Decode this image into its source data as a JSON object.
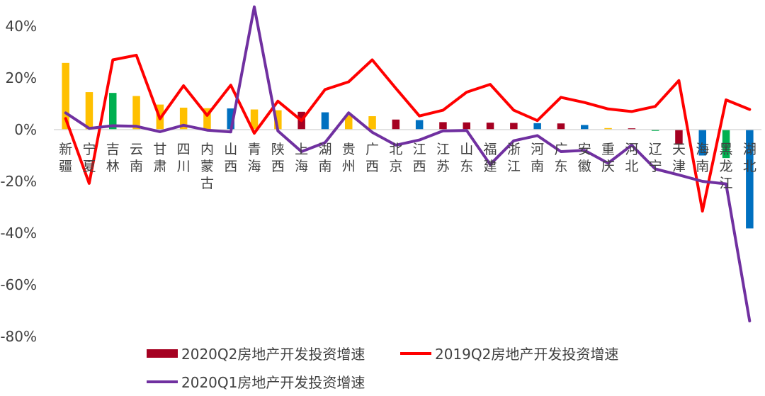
{
  "chart_data": {
    "type": "bar",
    "categories": [
      "新疆",
      "宁夏",
      "吉林",
      "云南",
      "甘肃",
      "四川",
      "内蒙古",
      "山西",
      "青海",
      "陕西",
      "上海",
      "湖南",
      "贵州",
      "广西",
      "北京",
      "江西",
      "江苏",
      "山东",
      "福建",
      "浙江",
      "河南",
      "广东",
      "安徽",
      "重庆",
      "河北",
      "辽宁",
      "天津",
      "海南",
      "黑龙江",
      "湖北"
    ],
    "ylim": [
      -80,
      45
    ],
    "yticks": [
      40,
      20,
      0,
      -20,
      -40,
      -60,
      -80
    ],
    "ytick_labels": [
      "40%",
      "20%",
      "0%",
      "-20%",
      "-40%",
      "-60%",
      "-80%"
    ],
    "grid": false,
    "legend_position": "bottom",
    "series": [
      {
        "name": "2020Q2房地产开发投资增速",
        "type": "bar",
        "color": "#A50021",
        "values": [
          25.8,
          14.5,
          14.2,
          13.0,
          9.7,
          8.5,
          8.3,
          8.2,
          7.8,
          7.5,
          6.9,
          6.7,
          5.5,
          5.2,
          3.9,
          3.7,
          2.9,
          2.8,
          2.7,
          2.6,
          2.5,
          2.4,
          1.8,
          0.6,
          0.5,
          -0.5,
          -5.8,
          -10.0,
          -11.0,
          -38.2
        ],
        "bar_colors": [
          "#FFC000",
          "#FFC000",
          "#00B050",
          "#FFC000",
          "#FFC000",
          "#FFC000",
          "#FFC000",
          "#0070C0",
          "#FFC000",
          "#FFC000",
          "#A50021",
          "#0070C0",
          "#FFC000",
          "#FFC000",
          "#A50021",
          "#0070C0",
          "#A50021",
          "#A50021",
          "#A50021",
          "#A50021",
          "#0070C0",
          "#A50021",
          "#0070C0",
          "#FFC000",
          "#A50021",
          "#00B050",
          "#A50021",
          "#0070C0",
          "#00B050",
          "#0070C0"
        ]
      },
      {
        "name": "2019Q2房地产开发投资增速",
        "type": "line",
        "color": "#FF0000",
        "values": [
          4.3,
          -20.8,
          27.0,
          28.8,
          4.2,
          17.0,
          5.5,
          17.2,
          -1.4,
          11.0,
          3.5,
          15.5,
          18.5,
          27.0,
          16.0,
          5.3,
          7.5,
          14.5,
          17.5,
          7.5,
          3.5,
          12.5,
          10.5,
          8.0,
          7.0,
          9.0,
          19.0,
          -31.5,
          11.5,
          7.8
        ]
      },
      {
        "name": "2020Q1房地产开发投资增速",
        "type": "line",
        "color": "#7030A0",
        "values": [
          6.5,
          0.5,
          1.5,
          1.3,
          -0.8,
          1.7,
          -0.2,
          -0.9,
          47.5,
          -0.5,
          -8.5,
          -5.0,
          6.5,
          -1.0,
          -6.0,
          -4.0,
          -0.5,
          -0.3,
          -13.5,
          -4.3,
          -2.3,
          -8.5,
          -8.0,
          -13.0,
          -6.0,
          -15.2,
          -17.5,
          -20.0,
          -21.0,
          -74.0
        ]
      }
    ]
  }
}
